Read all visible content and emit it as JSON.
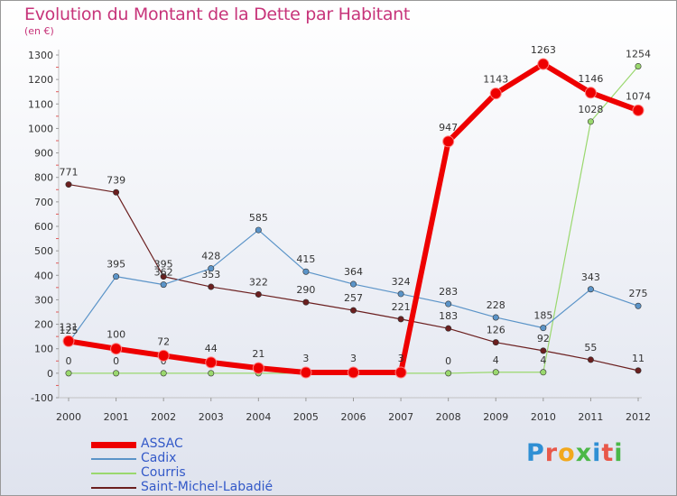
{
  "header": {
    "title": "Evolution du Montant de la Dette par Habitant",
    "unit": "(en €)"
  },
  "logo": {
    "text": "Proxiti",
    "colors": [
      "#2f8fd4",
      "#e8584a",
      "#f2a81c",
      "#4bb848",
      "#2f8fd4",
      "#e8584a",
      "#4bb848"
    ]
  },
  "chart_data": {
    "type": "line",
    "title": "Evolution du Montant de la Dette par Habitant",
    "ylabel": "(en €)",
    "x": [
      "2000",
      "2001",
      "2002",
      "2003",
      "2004",
      "2005",
      "2006",
      "2007",
      "2008",
      "2009",
      "2010",
      "2011",
      "2012"
    ],
    "ylim": [
      -100,
      1300
    ],
    "yticks": [
      "-100",
      "0",
      "100",
      "200",
      "300",
      "400",
      "500",
      "600",
      "700",
      "800",
      "900",
      "1000",
      "1100",
      "1200",
      "1300"
    ],
    "grid": false,
    "legend_position": "bottom-left",
    "series": [
      {
        "name": "Saint-Michel-Labadié",
        "color": "#6b1f1f",
        "width": 1.2,
        "values": [
          771,
          739,
          395,
          353,
          322,
          290,
          257,
          221,
          183,
          126,
          92,
          55,
          11
        ],
        "labels": [
          "771",
          "739",
          "395",
          "353",
          "322",
          "290",
          "257",
          "221",
          "183",
          "126",
          "92",
          "55",
          "11"
        ]
      },
      {
        "name": "Courris",
        "color": "#9ad86e",
        "width": 1.2,
        "values": [
          0,
          0,
          0,
          0,
          0,
          0,
          0,
          0,
          0,
          4,
          4,
          1028,
          1254
        ],
        "labels": [
          "0",
          "0",
          "0",
          "",
          "",
          "",
          "",
          "",
          "0",
          "4",
          "4",
          "1028",
          "1254"
        ]
      },
      {
        "name": "Cadix",
        "color": "#5b94c8",
        "width": 1.2,
        "values": [
          125,
          395,
          362,
          428,
          585,
          415,
          364,
          324,
          283,
          228,
          185,
          343,
          275
        ],
        "labels": [
          "125",
          "395",
          "362",
          "428",
          "585",
          "415",
          "364",
          "324",
          "283",
          "228",
          "185",
          "343",
          "275"
        ]
      },
      {
        "name": "ASSAC",
        "color": "#ee0000",
        "width": 6,
        "values": [
          131,
          100,
          72,
          44,
          21,
          3,
          3,
          3,
          947,
          1143,
          1263,
          1146,
          1074
        ],
        "labels": [
          "131",
          "100",
          "72",
          "44",
          "21",
          "3",
          "3",
          "3",
          "947",
          "1143",
          "1263",
          "1146",
          "1074"
        ]
      }
    ],
    "legend": [
      {
        "name": "ASSAC",
        "color": "#ee0000",
        "thickness": 7
      },
      {
        "name": "Cadix",
        "color": "#5b94c8",
        "thickness": 2
      },
      {
        "name": "Courris",
        "color": "#9ad86e",
        "thickness": 2
      },
      {
        "name": "Saint-Michel-Labadié",
        "color": "#6b1f1f",
        "thickness": 2
      }
    ]
  }
}
